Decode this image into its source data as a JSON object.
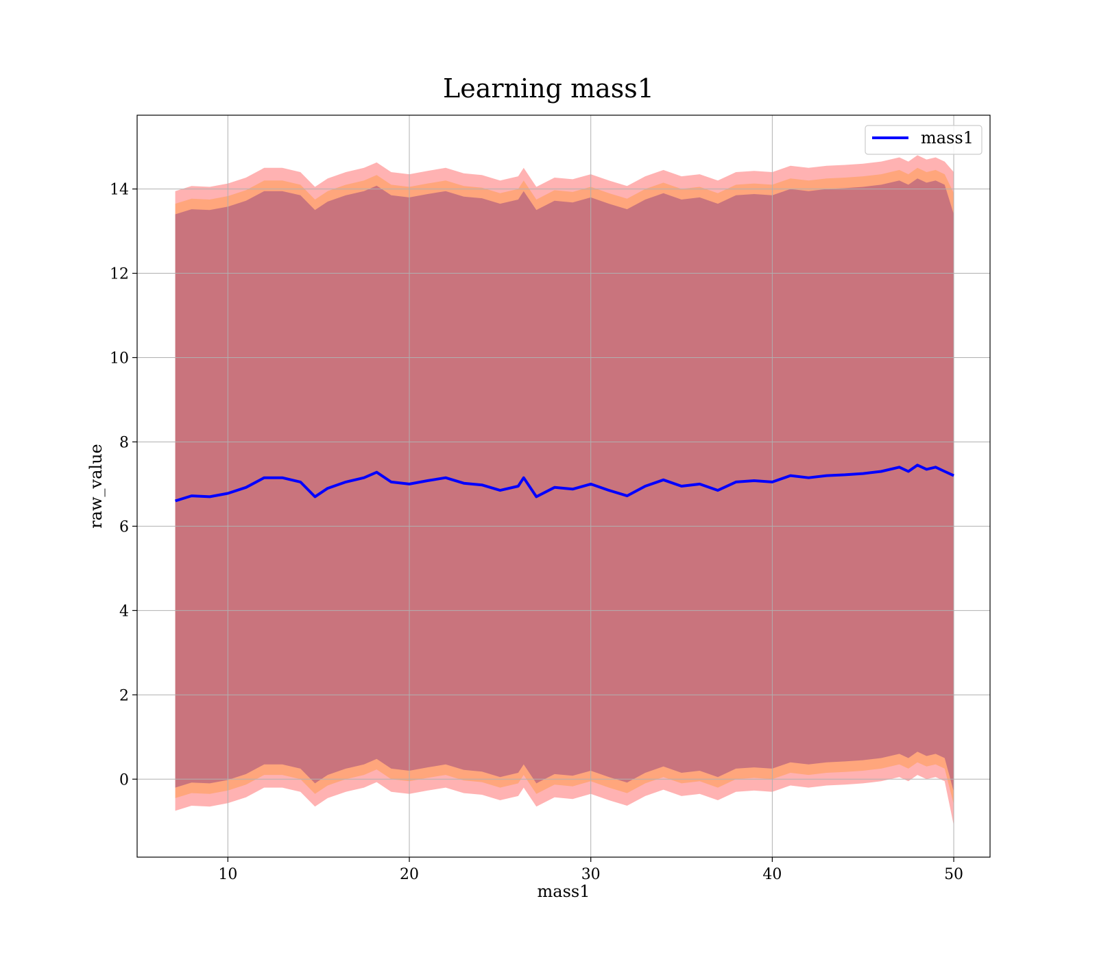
{
  "chart_data": {
    "type": "line",
    "title": "Learning mass1",
    "xlabel": "mass1",
    "ylabel": "raw_value",
    "xlim": [
      5,
      52
    ],
    "ylim": [
      -1.85,
      15.75
    ],
    "x_ticks": [
      10,
      20,
      30,
      40,
      50
    ],
    "y_ticks": [
      0,
      2,
      4,
      6,
      8,
      10,
      12,
      14
    ],
    "grid": true,
    "legend": {
      "position": "top-right",
      "entries": [
        "mass1"
      ]
    },
    "series": [
      {
        "name": "mass1",
        "color": "#0000ff",
        "x": [
          7.1,
          8,
          9,
          10,
          11,
          12,
          13,
          14,
          14.8,
          15.5,
          16.5,
          17.5,
          18.2,
          19,
          20,
          21,
          22,
          23,
          24,
          25,
          26,
          26.3,
          27,
          28,
          29,
          30,
          31,
          32,
          33,
          34,
          35,
          36,
          37,
          38,
          39,
          40,
          41,
          42,
          43,
          44,
          45,
          46,
          47,
          47.5,
          48,
          48.5,
          49,
          49.5,
          50
        ],
        "y": [
          6.6,
          6.72,
          6.7,
          6.78,
          6.92,
          7.15,
          7.15,
          7.05,
          6.7,
          6.9,
          7.05,
          7.15,
          7.28,
          7.05,
          7.0,
          7.08,
          7.15,
          7.02,
          6.98,
          6.85,
          6.95,
          7.15,
          6.7,
          6.92,
          6.88,
          7.0,
          6.85,
          6.72,
          6.95,
          7.1,
          6.95,
          7.0,
          6.85,
          7.05,
          7.08,
          7.05,
          7.2,
          7.15,
          7.2,
          7.22,
          7.25,
          7.3,
          7.4,
          7.3,
          7.45,
          7.35,
          7.4,
          7.3,
          7.2
        ]
      }
    ],
    "bands": [
      {
        "color": "#ff0000",
        "opacity": 0.3,
        "x": [
          7.1,
          8,
          9,
          10,
          11,
          12,
          13,
          14,
          14.8,
          15.5,
          16.5,
          17.5,
          18.2,
          19,
          20,
          21,
          22,
          23,
          24,
          25,
          26,
          26.3,
          27,
          28,
          29,
          30,
          31,
          32,
          33,
          34,
          35,
          36,
          37,
          38,
          39,
          40,
          41,
          42,
          43,
          44,
          45,
          46,
          47,
          47.5,
          48,
          48.5,
          49,
          49.5,
          50
        ],
        "upper": [
          13.95,
          14.07,
          14.05,
          14.13,
          14.27,
          14.5,
          14.5,
          14.4,
          14.05,
          14.25,
          14.4,
          14.5,
          14.63,
          14.4,
          14.35,
          14.43,
          14.5,
          14.37,
          14.33,
          14.2,
          14.3,
          14.5,
          14.05,
          14.27,
          14.23,
          14.35,
          14.2,
          14.07,
          14.3,
          14.45,
          14.3,
          14.35,
          14.2,
          14.4,
          14.43,
          14.4,
          14.55,
          14.5,
          14.55,
          14.57,
          14.6,
          14.65,
          14.75,
          14.65,
          14.8,
          14.7,
          14.75,
          14.65,
          14.4
        ],
        "lower": [
          -0.75,
          -0.63,
          -0.65,
          -0.57,
          -0.43,
          -0.2,
          -0.2,
          -0.3,
          -0.65,
          -0.45,
          -0.3,
          -0.2,
          -0.07,
          -0.3,
          -0.35,
          -0.27,
          -0.2,
          -0.33,
          -0.37,
          -0.5,
          -0.4,
          -0.2,
          -0.65,
          -0.43,
          -0.47,
          -0.35,
          -0.5,
          -0.63,
          -0.4,
          -0.25,
          -0.4,
          -0.35,
          -0.5,
          -0.3,
          -0.27,
          -0.3,
          -0.15,
          -0.2,
          -0.15,
          -0.13,
          -0.1,
          -0.05,
          0.05,
          -0.05,
          0.1,
          0.0,
          0.05,
          -0.05,
          -1.1
        ]
      },
      {
        "color": "#ff8c00",
        "opacity": 0.3,
        "x": [
          7.1,
          8,
          9,
          10,
          11,
          12,
          13,
          14,
          14.8,
          15.5,
          16.5,
          17.5,
          18.2,
          19,
          20,
          21,
          22,
          23,
          24,
          25,
          26,
          26.3,
          27,
          28,
          29,
          30,
          31,
          32,
          33,
          34,
          35,
          36,
          37,
          38,
          39,
          40,
          41,
          42,
          43,
          44,
          45,
          46,
          47,
          47.5,
          48,
          48.5,
          49,
          49.5,
          50
        ],
        "upper": [
          13.65,
          13.77,
          13.75,
          13.83,
          13.97,
          14.2,
          14.2,
          14.1,
          13.75,
          13.95,
          14.1,
          14.2,
          14.33,
          14.1,
          14.05,
          14.13,
          14.2,
          14.07,
          14.03,
          13.9,
          14.0,
          14.2,
          13.75,
          13.97,
          13.93,
          14.05,
          13.9,
          13.77,
          14.0,
          14.15,
          14.0,
          14.05,
          13.9,
          14.1,
          14.13,
          14.1,
          14.25,
          14.2,
          14.25,
          14.27,
          14.3,
          14.35,
          14.45,
          14.35,
          14.5,
          14.4,
          14.45,
          14.35,
          13.9
        ],
        "lower": [
          -0.45,
          -0.33,
          -0.35,
          -0.27,
          -0.13,
          0.1,
          0.1,
          0.0,
          -0.35,
          -0.15,
          0.0,
          0.1,
          0.23,
          0.0,
          -0.05,
          0.03,
          0.1,
          -0.03,
          -0.07,
          -0.2,
          -0.1,
          0.1,
          -0.35,
          -0.13,
          -0.17,
          -0.05,
          -0.2,
          -0.33,
          -0.1,
          0.05,
          -0.1,
          -0.05,
          -0.2,
          0.0,
          0.03,
          0.0,
          0.15,
          0.1,
          0.15,
          0.17,
          0.2,
          0.25,
          0.35,
          0.25,
          0.4,
          0.3,
          0.35,
          0.25,
          -0.6
        ]
      },
      {
        "color": "#4b0082",
        "opacity": 0.3,
        "x": [
          7.1,
          8,
          9,
          10,
          11,
          12,
          13,
          14,
          14.8,
          15.5,
          16.5,
          17.5,
          18.2,
          19,
          20,
          21,
          22,
          23,
          24,
          25,
          26,
          26.3,
          27,
          28,
          29,
          30,
          31,
          32,
          33,
          34,
          35,
          36,
          37,
          38,
          39,
          40,
          41,
          42,
          43,
          44,
          45,
          46,
          47,
          47.5,
          48,
          48.5,
          49,
          49.5,
          50
        ],
        "upper": [
          13.4,
          13.52,
          13.5,
          13.58,
          13.72,
          13.95,
          13.95,
          13.85,
          13.5,
          13.7,
          13.85,
          13.95,
          14.08,
          13.85,
          13.8,
          13.88,
          13.95,
          13.82,
          13.78,
          13.65,
          13.75,
          13.95,
          13.5,
          13.72,
          13.68,
          13.8,
          13.65,
          13.52,
          13.75,
          13.9,
          13.75,
          13.8,
          13.65,
          13.85,
          13.88,
          13.85,
          14.0,
          13.95,
          14.0,
          14.02,
          14.05,
          14.1,
          14.2,
          14.1,
          14.25,
          14.15,
          14.2,
          14.1,
          13.4
        ],
        "lower": [
          -0.2,
          -0.08,
          -0.1,
          -0.02,
          0.12,
          0.35,
          0.35,
          0.25,
          -0.1,
          0.1,
          0.25,
          0.35,
          0.48,
          0.25,
          0.2,
          0.28,
          0.35,
          0.22,
          0.18,
          0.05,
          0.15,
          0.35,
          -0.1,
          0.12,
          0.08,
          0.2,
          0.05,
          -0.08,
          0.15,
          0.3,
          0.15,
          0.2,
          0.05,
          0.25,
          0.28,
          0.25,
          0.4,
          0.35,
          0.4,
          0.42,
          0.45,
          0.5,
          0.6,
          0.5,
          0.65,
          0.55,
          0.6,
          0.5,
          -0.3
        ]
      }
    ]
  }
}
